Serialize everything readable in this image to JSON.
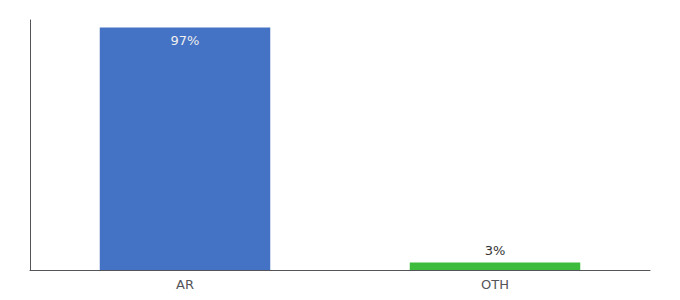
{
  "chart_data": {
    "type": "bar",
    "categories": [
      "AR",
      "OTH"
    ],
    "values": [
      97,
      3
    ],
    "value_labels": [
      "97%",
      "3%"
    ],
    "colors": [
      "#4472c4",
      "#3dbb3d"
    ],
    "ylim": [
      0,
      100
    ],
    "grid": false,
    "data_labels": true,
    "tick_labels": "x"
  }
}
